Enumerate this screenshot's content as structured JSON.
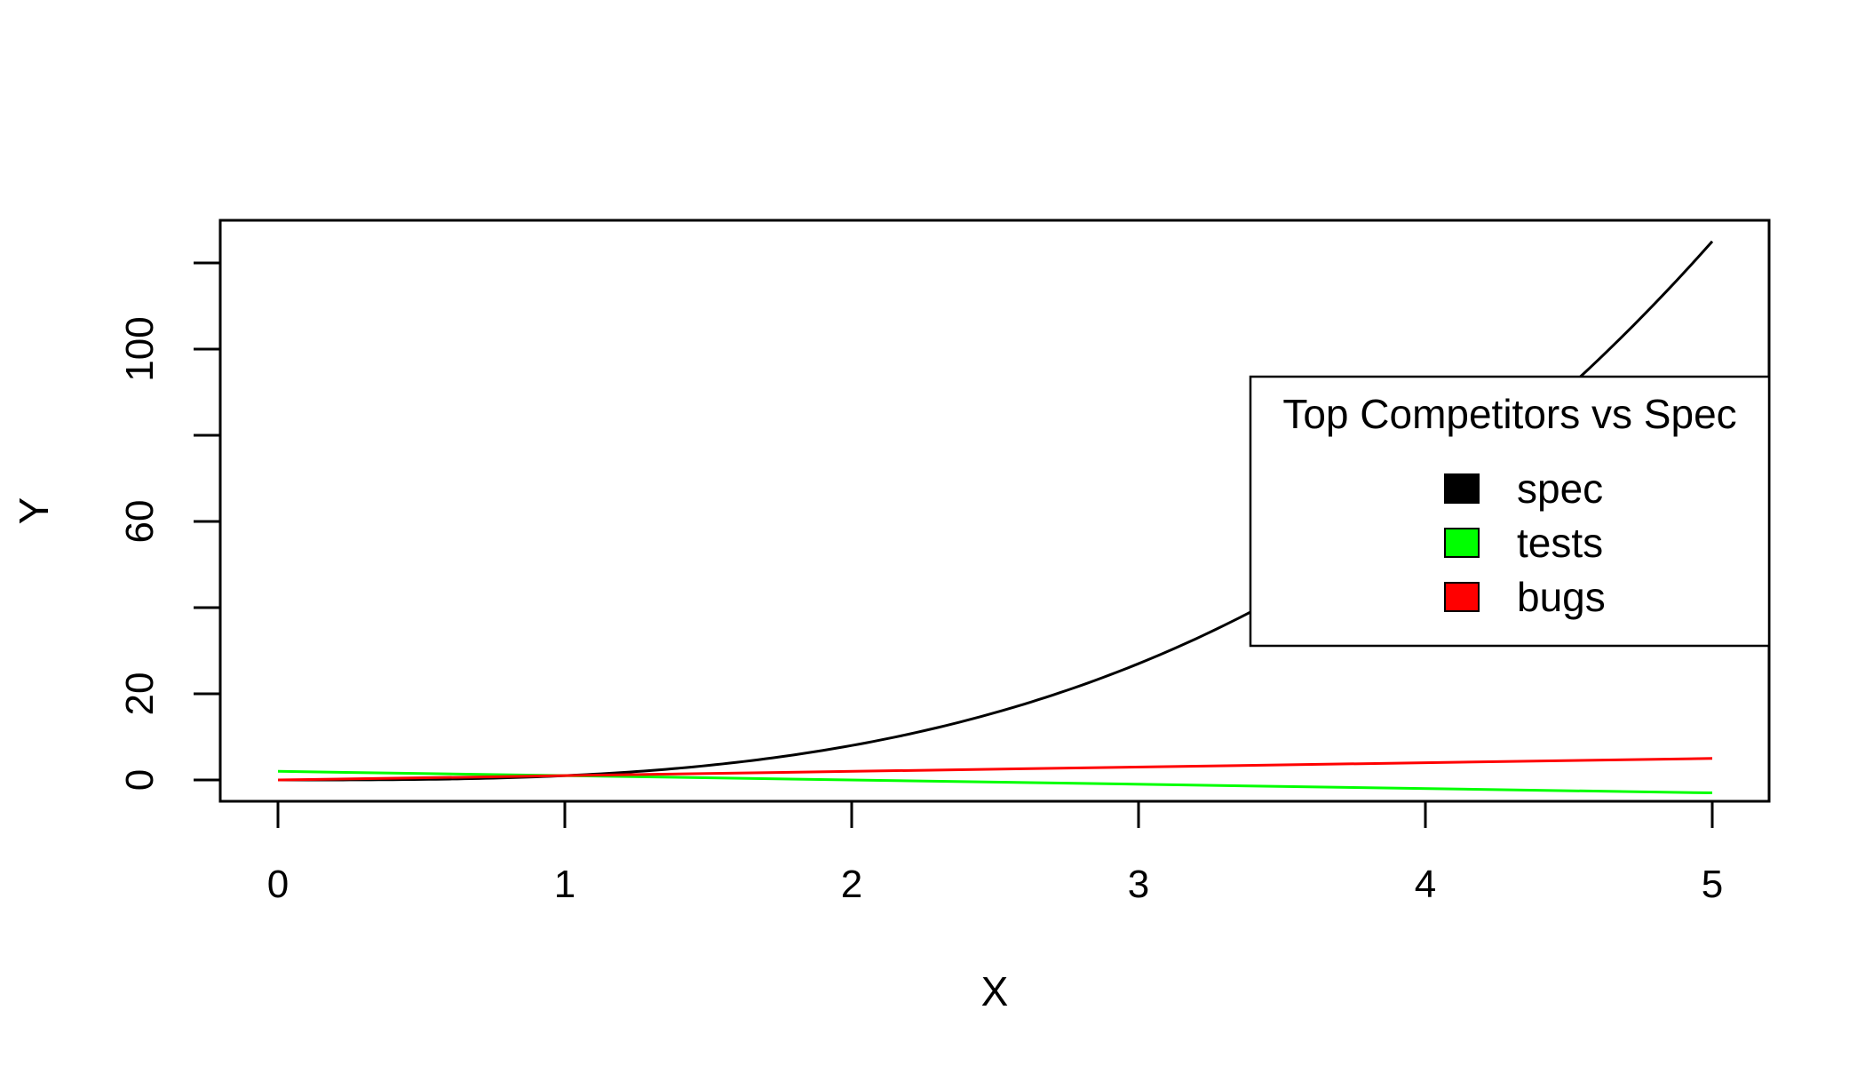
{
  "chart_data": {
    "type": "line",
    "title": "",
    "xlabel": "X",
    "ylabel": "Y",
    "xlim": [
      0,
      5
    ],
    "ylim": [
      0,
      125
    ],
    "x_ticks": [
      "0",
      "1",
      "2",
      "3",
      "4",
      "5"
    ],
    "y_ticks": [
      "0",
      "20",
      "60",
      "100"
    ],
    "y_tick_values": [
      0,
      20,
      40,
      60,
      80,
      100,
      120
    ],
    "y_tick_labels": [
      "0",
      "20",
      "",
      "60",
      "",
      "100",
      ""
    ],
    "grid": false,
    "legend": {
      "title": "Top Competitors vs Spec",
      "position": "right",
      "entries": [
        "spec",
        "tests",
        "bugs"
      ]
    },
    "series": [
      {
        "name": "spec",
        "color": "#000000",
        "x": [
          0,
          0.25,
          0.5,
          0.75,
          1,
          1.25,
          1.5,
          1.75,
          2,
          2.25,
          2.5,
          2.75,
          3,
          3.25,
          3.5,
          3.75,
          4,
          4.25,
          4.5,
          4.75,
          5
        ],
        "values": [
          0,
          0.016,
          0.125,
          0.42,
          1,
          1.95,
          3.38,
          5.36,
          8,
          11.39,
          15.63,
          20.8,
          27,
          34.33,
          42.88,
          52.73,
          64,
          76.77,
          91.13,
          107.17,
          125
        ]
      },
      {
        "name": "tests",
        "color": "#00ff00",
        "x": [
          0,
          5
        ],
        "values": [
          2,
          -3
        ]
      },
      {
        "name": "bugs",
        "color": "#ff0000",
        "x": [
          0,
          5
        ],
        "values": [
          0,
          5
        ]
      }
    ]
  }
}
